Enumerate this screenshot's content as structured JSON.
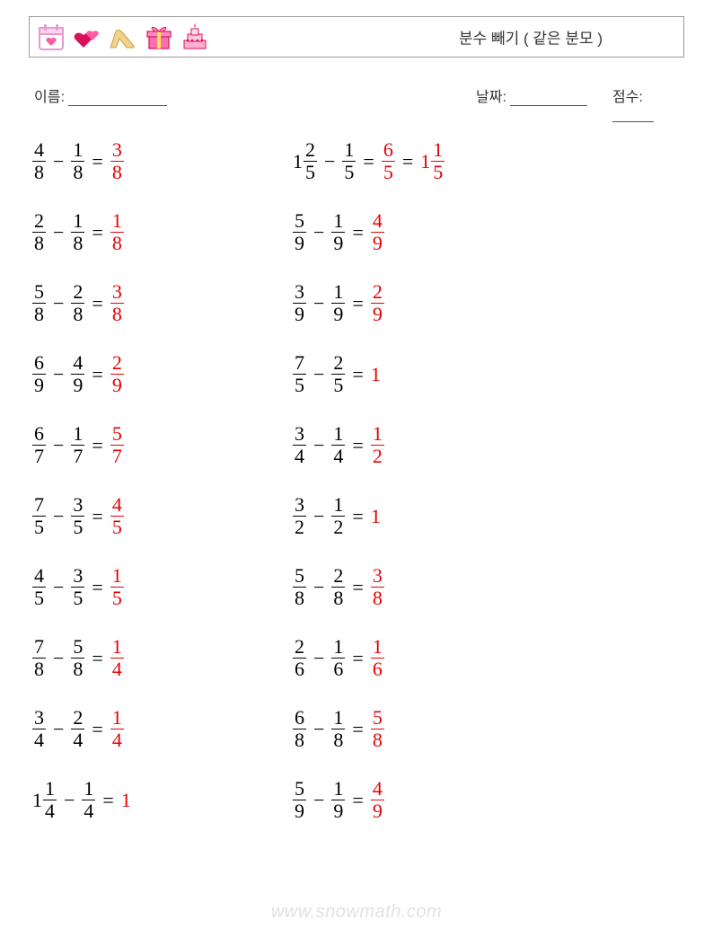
{
  "header": {
    "title": "분수 빼기 ( 같은 분모 )",
    "icons": [
      "calendar-heart",
      "hearts",
      "high-heel",
      "gift",
      "cake"
    ]
  },
  "meta": {
    "name_label": "이름:",
    "date_label": "날짜:",
    "score_label": "점수:"
  },
  "colors": {
    "answer": "#e60000",
    "text": "#000000",
    "border": "#9a9a9a",
    "watermark": "rgba(120,120,120,0.22)"
  },
  "watermark": "www.snowmath.com",
  "problems": {
    "col1": [
      {
        "a": {
          "n": 4,
          "d": 8
        },
        "b": {
          "n": 1,
          "d": 8
        },
        "ans": [
          {
            "n": 3,
            "d": 8
          }
        ]
      },
      {
        "a": {
          "n": 2,
          "d": 8
        },
        "b": {
          "n": 1,
          "d": 8
        },
        "ans": [
          {
            "n": 1,
            "d": 8
          }
        ]
      },
      {
        "a": {
          "n": 5,
          "d": 8
        },
        "b": {
          "n": 2,
          "d": 8
        },
        "ans": [
          {
            "n": 3,
            "d": 8
          }
        ]
      },
      {
        "a": {
          "n": 6,
          "d": 9
        },
        "b": {
          "n": 4,
          "d": 9
        },
        "ans": [
          {
            "n": 2,
            "d": 9
          }
        ]
      },
      {
        "a": {
          "n": 6,
          "d": 7
        },
        "b": {
          "n": 1,
          "d": 7
        },
        "ans": [
          {
            "n": 5,
            "d": 7
          }
        ]
      },
      {
        "a": {
          "n": 7,
          "d": 5
        },
        "b": {
          "n": 3,
          "d": 5
        },
        "ans": [
          {
            "n": 4,
            "d": 5
          }
        ]
      },
      {
        "a": {
          "n": 4,
          "d": 5
        },
        "b": {
          "n": 3,
          "d": 5
        },
        "ans": [
          {
            "n": 1,
            "d": 5
          }
        ]
      },
      {
        "a": {
          "n": 7,
          "d": 8
        },
        "b": {
          "n": 5,
          "d": 8
        },
        "ans": [
          {
            "n": 1,
            "d": 4
          }
        ]
      },
      {
        "a": {
          "n": 3,
          "d": 4
        },
        "b": {
          "n": 2,
          "d": 4
        },
        "ans": [
          {
            "n": 1,
            "d": 4
          }
        ]
      },
      {
        "a": {
          "w": 1,
          "n": 1,
          "d": 4
        },
        "b": {
          "n": 1,
          "d": 4
        },
        "ans": [
          {
            "int": 1
          }
        ]
      }
    ],
    "col2": [
      {
        "a": {
          "w": 1,
          "n": 2,
          "d": 5
        },
        "b": {
          "n": 1,
          "d": 5
        },
        "ans": [
          {
            "n": 6,
            "d": 5
          },
          {
            "w": 1,
            "n": 1,
            "d": 5
          }
        ]
      },
      {
        "a": {
          "n": 5,
          "d": 9
        },
        "b": {
          "n": 1,
          "d": 9
        },
        "ans": [
          {
            "n": 4,
            "d": 9
          }
        ]
      },
      {
        "a": {
          "n": 3,
          "d": 9
        },
        "b": {
          "n": 1,
          "d": 9
        },
        "ans": [
          {
            "n": 2,
            "d": 9
          }
        ]
      },
      {
        "a": {
          "n": 7,
          "d": 5
        },
        "b": {
          "n": 2,
          "d": 5
        },
        "ans": [
          {
            "int": 1
          }
        ]
      },
      {
        "a": {
          "n": 3,
          "d": 4
        },
        "b": {
          "n": 1,
          "d": 4
        },
        "ans": [
          {
            "n": 1,
            "d": 2
          }
        ]
      },
      {
        "a": {
          "n": 3,
          "d": 2
        },
        "b": {
          "n": 1,
          "d": 2
        },
        "ans": [
          {
            "int": 1
          }
        ]
      },
      {
        "a": {
          "n": 5,
          "d": 8
        },
        "b": {
          "n": 2,
          "d": 8
        },
        "ans": [
          {
            "n": 3,
            "d": 8
          }
        ]
      },
      {
        "a": {
          "n": 2,
          "d": 6
        },
        "b": {
          "n": 1,
          "d": 6
        },
        "ans": [
          {
            "n": 1,
            "d": 6
          }
        ]
      },
      {
        "a": {
          "n": 6,
          "d": 8
        },
        "b": {
          "n": 1,
          "d": 8
        },
        "ans": [
          {
            "n": 5,
            "d": 8
          }
        ]
      },
      {
        "a": {
          "n": 5,
          "d": 9
        },
        "b": {
          "n": 1,
          "d": 9
        },
        "ans": [
          {
            "n": 4,
            "d": 9
          }
        ]
      }
    ]
  }
}
